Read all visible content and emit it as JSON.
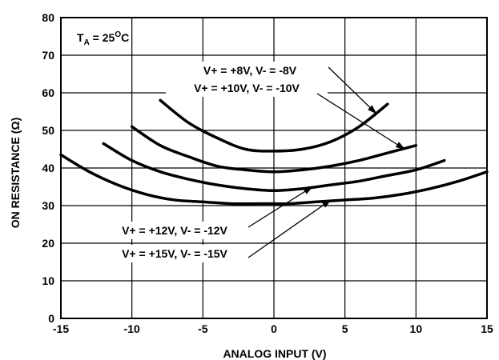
{
  "chart_data": {
    "type": "line",
    "xlabel": "ANALOG INPUT (V)",
    "ylabel": "ON RESISTANCE (Ω)",
    "xlim": [
      -15,
      15
    ],
    "ylim": [
      0,
      80
    ],
    "x_ticks": [
      "-15",
      "-10",
      "-5",
      "0",
      "5",
      "10",
      "15"
    ],
    "y_ticks": [
      "0",
      "10",
      "20",
      "30",
      "40",
      "50",
      "60",
      "70",
      "80"
    ],
    "grid": true,
    "condition": {
      "main": "T",
      "sub": "A",
      "value": " = 25",
      "sup": "O",
      "unit": "C"
    },
    "series": [
      {
        "name": "V+ = +8V, V- = -8V",
        "x": [
          -8,
          -6,
          -4,
          -2,
          0,
          2,
          4,
          6,
          8
        ],
        "y": [
          58,
          52,
          48,
          45,
          44.5,
          45,
          47,
          51,
          57
        ]
      },
      {
        "name": "V+ = +10V, V- = -10V",
        "x": [
          -10,
          -8,
          -6,
          -4,
          -2,
          0,
          2,
          4,
          6,
          8,
          10
        ],
        "y": [
          51,
          46,
          43,
          40.5,
          39.5,
          39,
          39.5,
          40.5,
          42,
          44,
          46
        ]
      },
      {
        "name": "V+ = +12V, V- = -12V",
        "x": [
          -12,
          -10,
          -8,
          -6,
          -4,
          -2,
          0,
          2,
          4,
          6,
          8,
          10,
          12
        ],
        "y": [
          46.5,
          42,
          39,
          37,
          35.5,
          34.5,
          34,
          34.5,
          35.5,
          36.5,
          38,
          39.5,
          42
        ]
      },
      {
        "name": "V+ = +15V, V- = -15V",
        "x": [
          -15,
          -13,
          -11,
          -9,
          -7,
          -5,
          -3,
          -1,
          0,
          1,
          3,
          5,
          7,
          9,
          11,
          13,
          15
        ],
        "y": [
          43.5,
          39,
          35.5,
          33,
          31.5,
          31,
          30.5,
          30.5,
          30.5,
          30.5,
          31,
          31.5,
          32,
          33,
          34.5,
          36.5,
          39
        ]
      }
    ],
    "annotations": [
      {
        "text": "V+ = +8V, V- = -8V",
        "series": 0,
        "point": [
          7.2,
          54.5
        ]
      },
      {
        "text": "V+ = +10V, V- = -10V",
        "series": 1,
        "point": [
          9.2,
          45
        ]
      },
      {
        "text": "V+ = +12V, V- = -12V",
        "series": 2,
        "point": [
          2.7,
          35
        ]
      },
      {
        "text": "V+ = +15V, V- = -15V",
        "series": 3,
        "point": [
          4,
          31.5
        ]
      }
    ]
  }
}
